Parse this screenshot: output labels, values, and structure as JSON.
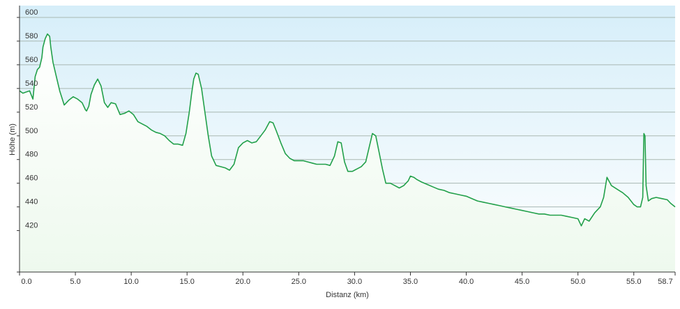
{
  "chart_data": {
    "type": "area",
    "xlabel": "Distanz  (km)",
    "ylabel": "Höhe (m)",
    "xlim": [
      0,
      58.7
    ],
    "ylim": [
      385,
      610
    ],
    "x_ticks": [
      0,
      5,
      10,
      15,
      20,
      25,
      30,
      35,
      40,
      45,
      50,
      55,
      58.7
    ],
    "x_tick_labels": [
      "0.0",
      "5.0",
      "10.0",
      "15.0",
      "20.0",
      "25.0",
      "30.0",
      "35.0",
      "40.0",
      "45.0",
      "50.0",
      "55.0",
      "58.7"
    ],
    "y_ticks": [
      420,
      440,
      460,
      480,
      500,
      520,
      540,
      560,
      580,
      600
    ],
    "y_tick_labels": [
      "420",
      "440",
      "460",
      "480",
      "500",
      "520",
      "540",
      "560",
      "580",
      "600"
    ],
    "grid": "horizontal",
    "legend": "none",
    "colors": {
      "line": "#22a04a",
      "sky_top": "#d6eef9",
      "fill_bottom": "#eef9ee",
      "grid": "#a9b8b2",
      "axis": "#333333"
    },
    "series": [
      {
        "x": [
          0,
          0.3,
          0.6,
          0.9,
          1.2,
          1.4,
          1.6,
          1.8,
          2.0,
          2.1,
          2.3,
          2.5,
          2.7,
          2.8,
          3.0,
          3.3,
          3.6,
          4.0,
          4.4,
          4.8,
          5.2,
          5.6,
          5.9,
          6.0,
          6.2,
          6.4,
          6.7,
          7.0,
          7.3,
          7.6,
          7.9,
          8.2,
          8.6,
          9.0,
          9.4,
          9.8,
          10.2,
          10.6,
          11.0,
          11.4,
          11.8,
          12.2,
          12.6,
          13.0,
          13.4,
          13.8,
          14.2,
          14.6,
          14.9,
          15.2,
          15.4,
          15.6,
          15.8,
          16.0,
          16.3,
          16.6,
          16.9,
          17.2,
          17.6,
          18.0,
          18.4,
          18.8,
          19.2,
          19.6,
          20.0,
          20.4,
          20.8,
          21.2,
          21.6,
          22.0,
          22.4,
          22.7,
          23.0,
          23.4,
          23.8,
          24.2,
          24.6,
          25.0,
          25.4,
          25.8,
          26.2,
          26.6,
          27.0,
          27.4,
          27.8,
          28.2,
          28.5,
          28.8,
          29.1,
          29.4,
          29.8,
          30.2,
          30.6,
          31.0,
          31.3,
          31.6,
          31.9,
          32.2,
          32.5,
          32.8,
          33.2,
          33.6,
          34.0,
          34.4,
          34.8,
          35.0,
          35.3,
          35.6,
          36.0,
          36.5,
          37.0,
          37.5,
          38.0,
          38.5,
          39.0,
          39.5,
          40.0,
          40.5,
          41.0,
          41.5,
          42.0,
          42.5,
          43.0,
          43.5,
          44.0,
          44.5,
          45.0,
          45.5,
          46.0,
          46.5,
          47.0,
          47.5,
          48.0,
          48.5,
          49.0,
          49.5,
          50.0,
          50.3,
          50.6,
          51.0,
          51.5,
          52.0,
          52.3,
          52.6,
          53.0,
          53.5,
          54.0,
          54.5,
          55.0,
          55.3,
          55.6,
          55.8,
          55.9,
          56.0,
          56.1,
          56.3,
          56.6,
          57.0,
          57.5,
          58.0,
          58.3,
          58.7
        ],
        "y": [
          538,
          536,
          537,
          538,
          531,
          550,
          556,
          558,
          566,
          575,
          582,
          586,
          584,
          575,
          562,
          550,
          538,
          526,
          530,
          533,
          531,
          528,
          522,
          521,
          525,
          535,
          543,
          548,
          542,
          528,
          524,
          528,
          527,
          518,
          519,
          521,
          518,
          512,
          510,
          508,
          505,
          503,
          502,
          500,
          496,
          493,
          493,
          492,
          502,
          520,
          535,
          548,
          553,
          552,
          540,
          520,
          500,
          483,
          475,
          474,
          473,
          471,
          476,
          490,
          494,
          496,
          494,
          495,
          500,
          505,
          512,
          511,
          504,
          494,
          485,
          481,
          479,
          479,
          479,
          478,
          477,
          476,
          476,
          476,
          475,
          483,
          495,
          494,
          478,
          470,
          470,
          472,
          474,
          478,
          490,
          502,
          500,
          486,
          472,
          460,
          460,
          458,
          456,
          458,
          462,
          466,
          465,
          463,
          461,
          459,
          457,
          455,
          454,
          452,
          451,
          450,
          449,
          447,
          445,
          444,
          443,
          442,
          441,
          440,
          439,
          438,
          437,
          436,
          435,
          434,
          434,
          433,
          433,
          433,
          432,
          431,
          430,
          424,
          430,
          428,
          435,
          440,
          448,
          465,
          458,
          455,
          452,
          448,
          442,
          440,
          440,
          448,
          502,
          500,
          458,
          445,
          447,
          448,
          447,
          446,
          443,
          440
        ]
      }
    ]
  }
}
